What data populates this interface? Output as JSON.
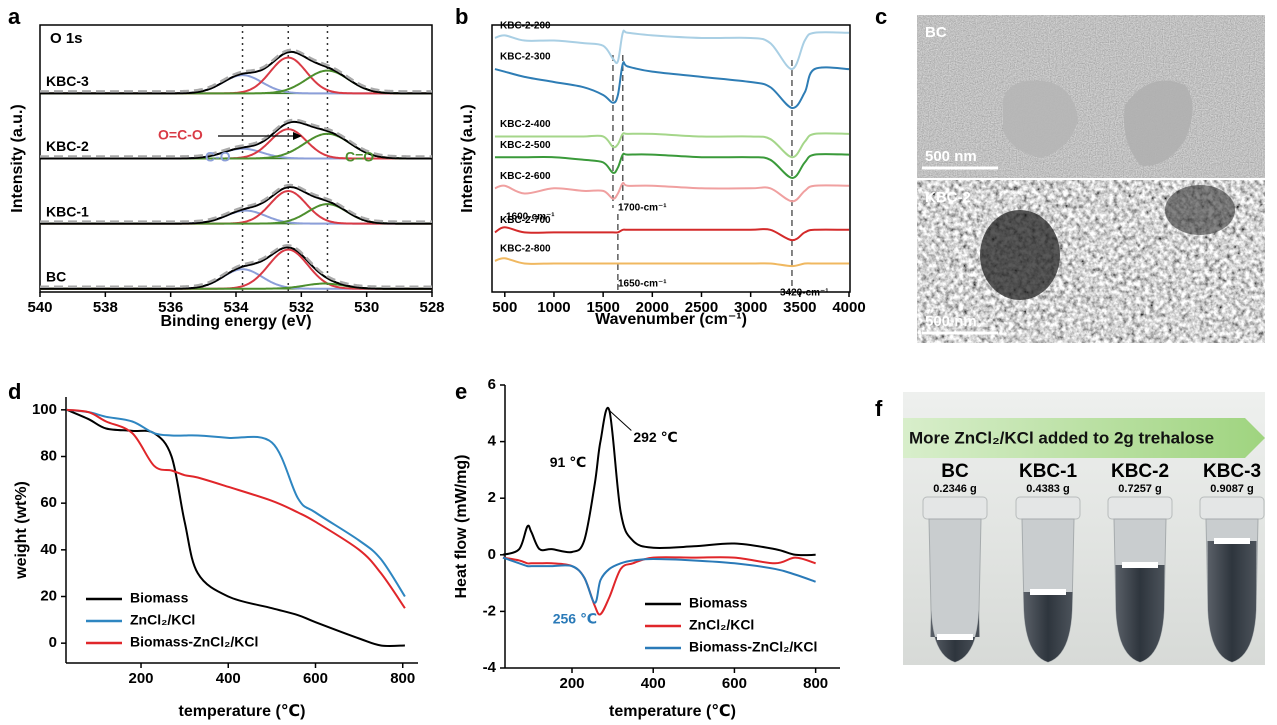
{
  "panel_labels": [
    "a",
    "b",
    "c",
    "d",
    "e",
    "f"
  ],
  "chart_data": [
    {
      "type": "xps",
      "annotation": "O 1s",
      "x_label": "Binding energy (eV)",
      "y_label": "Intensity (a.u.)",
      "xlim": [
        540,
        528
      ],
      "xticks": [
        540,
        538,
        536,
        534,
        532,
        530,
        528
      ],
      "ylim": [
        -0.05,
        4.05
      ],
      "vlines": [
        533.8,
        532.4,
        531.2
      ],
      "components": [
        {
          "name": "C-O",
          "color": "#8c9fd9"
        },
        {
          "name": "O=C-O",
          "color": "#d93a45"
        },
        {
          "name": "C=O",
          "color": "#4d8f2e"
        }
      ],
      "samples": [
        {
          "name": "KBC-3",
          "offset": 3,
          "centers": [
            533.8,
            532.4,
            531.2
          ],
          "heights": [
            0.28,
            0.55,
            0.35
          ],
          "widths": [
            0.6,
            0.55,
            0.65
          ]
        },
        {
          "name": "KBC-2",
          "offset": 2,
          "centers": [
            533.8,
            532.4,
            531.2
          ],
          "heights": [
            0.15,
            0.45,
            0.38
          ],
          "widths": [
            0.6,
            0.55,
            0.7
          ]
        },
        {
          "name": "KBC-1",
          "offset": 1,
          "centers": [
            533.7,
            532.4,
            531.2
          ],
          "heights": [
            0.2,
            0.5,
            0.3
          ],
          "widths": [
            0.6,
            0.55,
            0.6
          ]
        },
        {
          "name": "BC",
          "offset": 0,
          "centers": [
            533.8,
            532.4,
            531.3
          ],
          "heights": [
            0.3,
            0.6,
            0.08
          ],
          "widths": [
            0.6,
            0.6,
            0.6
          ]
        }
      ]
    },
    {
      "type": "line",
      "x_label": "Wavenumber (cm⁻¹)",
      "y_label": "Intensity (a.u.)",
      "xlim": [
        370,
        4010
      ],
      "xticks": [
        500,
        1000,
        1500,
        2000,
        2500,
        3000,
        3500,
        4000
      ],
      "ylim": [
        0,
        10.3
      ],
      "series_labels": true,
      "x": [
        400,
        500,
        700,
        1000,
        1300,
        1500,
        1600,
        1650,
        1700,
        1750,
        2000,
        2500,
        3000,
        3200,
        3420,
        3550,
        3650,
        4000
      ],
      "series": [
        {
          "name": "KBC-2-200",
          "color": "#a9cfe4",
          "values": [
            9.8,
            9.9,
            9.7,
            9.7,
            9.6,
            9.5,
            9.0,
            8.9,
            10.0,
            10.0,
            9.9,
            9.8,
            9.8,
            9.6,
            8.6,
            9.7,
            10.0,
            10.0
          ]
        },
        {
          "name": "KBC-2-300",
          "color": "#2e7db5",
          "values": [
            8.6,
            8.5,
            8.3,
            8.1,
            7.9,
            7.6,
            7.3,
            7.6,
            8.8,
            8.7,
            8.5,
            8.3,
            8.1,
            7.9,
            7.1,
            7.7,
            8.6,
            8.6
          ]
        },
        {
          "name": "KBC-2-400",
          "color": "#a5d68a",
          "values": [
            6.0,
            6.0,
            6.0,
            6.0,
            6.0,
            6.0,
            5.6,
            5.7,
            6.1,
            6.1,
            6.1,
            6.0,
            6.0,
            5.9,
            5.2,
            5.8,
            6.1,
            6.1
          ]
        },
        {
          "name": "KBC-2-500",
          "color": "#3a9a3a",
          "values": [
            5.2,
            5.2,
            5.2,
            5.2,
            5.1,
            5.0,
            4.6,
            4.8,
            5.3,
            5.3,
            5.3,
            5.2,
            5.2,
            5.1,
            4.4,
            5.0,
            5.3,
            5.3
          ]
        },
        {
          "name": "KBC-2-600",
          "color": "#f0a0a0",
          "values": [
            4.0,
            4.1,
            3.8,
            4.0,
            3.9,
            3.9,
            3.6,
            3.8,
            4.2,
            4.1,
            4.1,
            4.0,
            4.0,
            4.0,
            3.5,
            3.9,
            4.1,
            4.1
          ]
        },
        {
          "name": "KBC-2-700",
          "color": "#d42a2a",
          "values": [
            2.3,
            2.5,
            2.3,
            2.3,
            2.3,
            2.3,
            2.3,
            2.3,
            2.4,
            2.4,
            2.4,
            2.4,
            2.4,
            2.4,
            2.0,
            2.3,
            2.4,
            2.4
          ]
        },
        {
          "name": "KBC-2-800",
          "color": "#f0b860",
          "values": [
            1.2,
            1.3,
            1.1,
            1.1,
            1.1,
            1.1,
            1.1,
            1.1,
            1.1,
            1.1,
            1.1,
            1.1,
            1.1,
            1.1,
            1.0,
            1.1,
            1.1,
            1.1
          ]
        }
      ],
      "vlines": [
        {
          "x": 1600,
          "label": "1600-cm⁻¹"
        },
        {
          "x": 1700,
          "label": "1700-cm⁻¹"
        },
        {
          "x": 1650,
          "label": "1650-cm⁻¹"
        },
        {
          "x": 3420,
          "label": "3420-cm⁻¹"
        }
      ]
    },
    {
      "type": "line",
      "x_label": "temperature (℃)",
      "y_label": "weight (wt%)",
      "xlim": [
        28,
        835
      ],
      "xticks": [
        200,
        400,
        600,
        800
      ],
      "ylim": [
        -8.5,
        105.5
      ],
      "yticks": [
        0,
        20,
        40,
        60,
        80,
        100
      ],
      "legend": "lower left",
      "x": [
        30,
        80,
        120,
        180,
        230,
        270,
        300,
        330,
        400,
        500,
        560,
        600,
        700,
        750,
        805
      ],
      "series": [
        {
          "name": "Biomass",
          "color": "#000000",
          "values": [
            100,
            96,
            92,
            91,
            90,
            80,
            52,
            30,
            20,
            15,
            12,
            9,
            2,
            -1,
            -1
          ]
        },
        {
          "name": "ZnCl₂/KCl",
          "color": "#2e86c1",
          "values": [
            100,
            99,
            97,
            95,
            90,
            89,
            89,
            89,
            88,
            86,
            62,
            56,
            44,
            36,
            20
          ]
        },
        {
          "name": "Biomass-ZnCl₂/KCl",
          "color": "#e0262a",
          "values": [
            100,
            99,
            95,
            90,
            76,
            74,
            72,
            71,
            67,
            61,
            56,
            52,
            40,
            30,
            15
          ]
        }
      ]
    },
    {
      "type": "line",
      "x_label": "temperature (℃)",
      "y_label": "Heat flow (mW/mg)",
      "xlim": [
        35,
        860
      ],
      "xticks": [
        200,
        400,
        600,
        800
      ],
      "ylim": [
        -4,
        6
      ],
      "yticks": [
        -4,
        -2,
        0,
        2,
        4,
        6
      ],
      "legend": "lower right",
      "x": [
        30,
        70,
        90,
        100,
        120,
        150,
        200,
        230,
        256,
        270,
        292,
        320,
        350,
        400,
        500,
        600,
        700,
        750,
        800
      ],
      "series": [
        {
          "name": "Biomass",
          "color": "#000000",
          "values": [
            0,
            0.2,
            1.0,
            0.8,
            0.2,
            0.2,
            0.1,
            0.5,
            2.5,
            4.0,
            5.1,
            1.5,
            0.5,
            0.25,
            0.3,
            0.4,
            0.2,
            0,
            0
          ]
        },
        {
          "name": "ZnCl₂/KCl",
          "color": "#e0262a",
          "values": [
            -0.1,
            -0.2,
            -0.3,
            -0.3,
            -0.3,
            -0.3,
            -0.4,
            -0.8,
            -1.8,
            -2.1,
            -1.5,
            -0.5,
            -0.3,
            -0.1,
            -0.1,
            -0.1,
            -0.3,
            -0.1,
            -0.3
          ]
        },
        {
          "name": "Biomass-ZnCl₂/KCl",
          "color": "#2a7ab8",
          "values": [
            -0.1,
            -0.3,
            -0.4,
            -0.4,
            -0.4,
            -0.4,
            -0.4,
            -0.8,
            -1.7,
            -0.9,
            -0.5,
            -0.3,
            -0.2,
            -0.15,
            -0.2,
            -0.3,
            -0.5,
            -0.7,
            -0.95
          ]
        }
      ],
      "annotations": [
        {
          "text": "91 ℃",
          "x": 91,
          "y": 1.0
        },
        {
          "text": "292 ℃",
          "x": 292,
          "y": 5.1
        },
        {
          "text": "256 ℃",
          "x": 256,
          "y": -1.7,
          "color": "#2a7ab8"
        }
      ]
    }
  ],
  "sem_images": [
    {
      "label": "BC",
      "scale": "500 nm"
    },
    {
      "label": "KBC-2",
      "scale": "500 nm"
    }
  ],
  "photo": {
    "banner": "More ZnCl₂/KCl added to 2g trehalose",
    "tubes": [
      {
        "name": "BC",
        "mass": "0.2346 g"
      },
      {
        "name": "KBC-1",
        "mass": "0.4383 g"
      },
      {
        "name": "KBC-2",
        "mass": "0.7257 g"
      },
      {
        "name": "KBC-3",
        "mass": "0.9087 g"
      }
    ]
  }
}
